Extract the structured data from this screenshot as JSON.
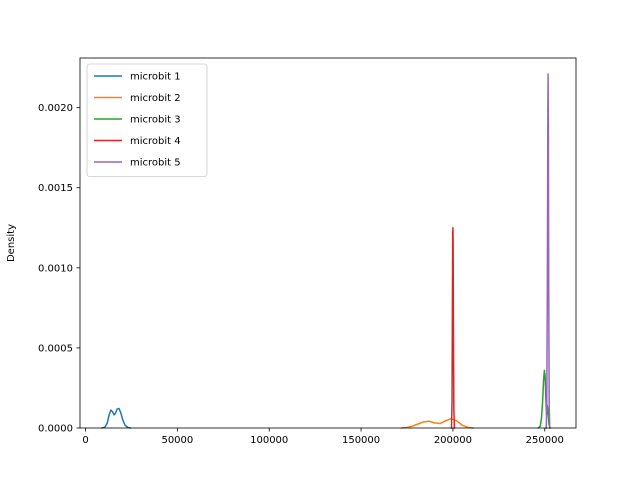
{
  "chart_data": {
    "type": "line",
    "title": "",
    "xlabel": "",
    "ylabel": "Density",
    "xlim": [
      -3000,
      267000
    ],
    "ylim": [
      0,
      0.00231
    ],
    "x_ticks": [
      0,
      50000,
      100000,
      150000,
      200000,
      250000
    ],
    "x_tick_labels": [
      "0",
      "50000",
      "100000",
      "150000",
      "200000",
      "250000"
    ],
    "y_ticks": [
      0,
      0.0005,
      0.001,
      0.0015,
      0.002
    ],
    "y_tick_labels": [
      "0.0000",
      "0.0005",
      "0.0010",
      "0.0015",
      "0.0020"
    ],
    "grid": false,
    "legend_position": "top-left",
    "series": [
      {
        "name": "microbit 1",
        "color": "#1f77b4",
        "x": [
          9000,
          10500,
          11800,
          12800,
          13800,
          14800,
          15600,
          16300,
          17200,
          18200,
          19200,
          20300,
          21500,
          23000,
          24500
        ],
        "y": [
          0,
          5e-06,
          3e-05,
          8e-05,
          0.000112,
          0.0001,
          8.2e-05,
          9.2e-05,
          0.000118,
          0.000122,
          9.5e-05,
          5e-05,
          1.8e-05,
          4e-06,
          0
        ]
      },
      {
        "name": "microbit 2",
        "color": "#ff7f0e",
        "x": [
          172000,
          175000,
          178000,
          181000,
          184000,
          187000,
          190000,
          193000,
          196000,
          199000,
          202000,
          205000,
          208000,
          211000
        ],
        "y": [
          0,
          3e-06,
          1.2e-05,
          2.5e-05,
          3.8e-05,
          4.2e-05,
          3.2e-05,
          2.8e-05,
          4.5e-05,
          5.8e-05,
          4.5e-05,
          1.8e-05,
          4e-06,
          0
        ]
      },
      {
        "name": "microbit 3",
        "color": "#2ca02c",
        "x": [
          246500,
          247500,
          248200,
          248800,
          249300,
          249800,
          250200,
          250600,
          251000,
          251400,
          251800,
          252300,
          253000
        ],
        "y": [
          0,
          1e-05,
          6e-05,
          0.00016,
          0.00029,
          0.00036,
          0.00032,
          0.00018,
          8e-05,
          0.00014,
          0.0001,
          2e-05,
          0
        ]
      },
      {
        "name": "microbit 4",
        "color": "#d62728",
        "x": [
          199200,
          199500,
          199700,
          199900,
          200000,
          200100,
          200300,
          200500,
          200800
        ],
        "y": [
          0,
          0.00015,
          0.0007,
          0.00122,
          0.00125,
          0.00118,
          0.0006,
          0.00012,
          0
        ]
      },
      {
        "name": "microbit 5",
        "color": "#9467bd",
        "x": [
          250800,
          251100,
          251400,
          251650,
          251800,
          251950,
          252150,
          252400,
          252700
        ],
        "y": [
          0,
          0.00015,
          0.0009,
          0.0019,
          0.00221,
          0.0019,
          0.0009,
          0.00015,
          0
        ]
      }
    ]
  }
}
